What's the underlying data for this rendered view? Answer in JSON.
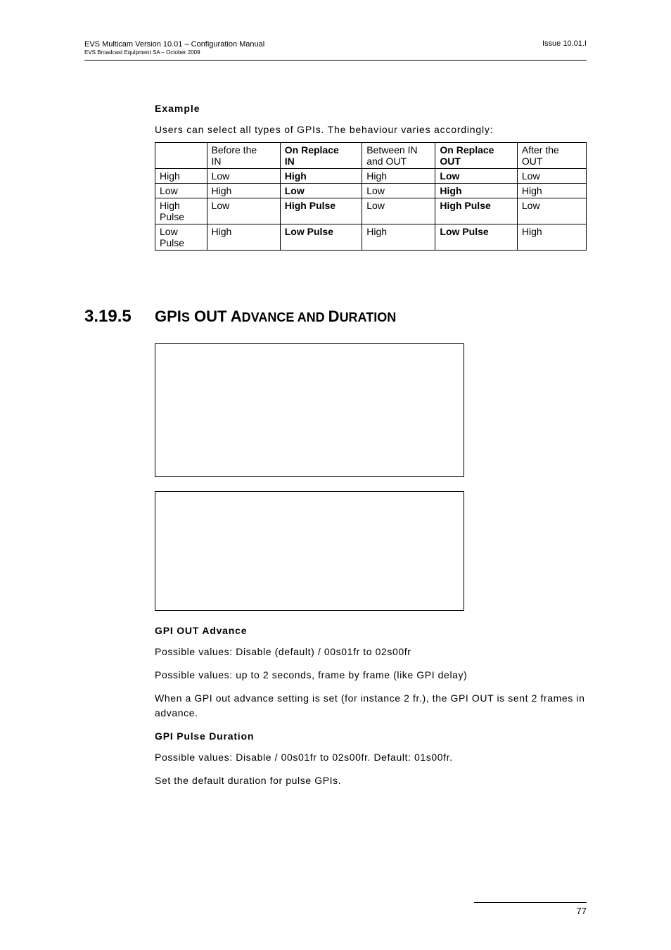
{
  "header": {
    "left_line1": "EVS Multicam Version 10.01 – Configuration Manual",
    "left_line2": "EVS Broadcast Equipment SA – October 2009",
    "right": "Issue 10.01.I"
  },
  "example": {
    "heading": "Example",
    "intro": "Users can select all types of GPIs. The behaviour varies accordingly:"
  },
  "table": {
    "columns": [
      {
        "line1": "",
        "line2": "",
        "bold": false
      },
      {
        "line1": "Before the",
        "line2": "IN",
        "bold": false
      },
      {
        "line1": "On Replace",
        "line2": "IN",
        "bold": true
      },
      {
        "line1": "Between IN",
        "line2": "and OUT",
        "bold": false
      },
      {
        "line1": "On Replace",
        "line2": "OUT",
        "bold": true
      },
      {
        "line1": "After the",
        "line2": "OUT",
        "bold": false
      }
    ],
    "rows": [
      [
        {
          "t": "High",
          "b": false
        },
        {
          "t": "Low",
          "b": false
        },
        {
          "t": "High",
          "b": true
        },
        {
          "t": "High",
          "b": false
        },
        {
          "t": "Low",
          "b": true
        },
        {
          "t": "Low",
          "b": false
        }
      ],
      [
        {
          "t": "Low",
          "b": false
        },
        {
          "t": "High",
          "b": false
        },
        {
          "t": "Low",
          "b": true
        },
        {
          "t": "Low",
          "b": false
        },
        {
          "t": "High",
          "b": true
        },
        {
          "t": "High",
          "b": false
        }
      ],
      [
        {
          "t": "High Pulse",
          "b": false
        },
        {
          "t": "Low",
          "b": false
        },
        {
          "t": "High Pulse",
          "b": true
        },
        {
          "t": "Low",
          "b": false
        },
        {
          "t": "High Pulse",
          "b": true
        },
        {
          "t": "Low",
          "b": false
        }
      ],
      [
        {
          "t": "Low Pulse",
          "b": false
        },
        {
          "t": "High",
          "b": false
        },
        {
          "t": "Low Pulse",
          "b": true
        },
        {
          "t": "High",
          "b": false
        },
        {
          "t": "Low Pulse",
          "b": true
        },
        {
          "t": "High",
          "b": false
        }
      ]
    ],
    "col_widths": [
      "12%",
      "17%",
      "19%",
      "17%",
      "19%",
      "16%"
    ]
  },
  "section": {
    "number": "3.19.5",
    "title_parts": [
      "GPI",
      "S",
      " OUT A",
      "DVANCE AND ",
      "D",
      "URATION"
    ]
  },
  "gpi_advance": {
    "heading": "GPI OUT Advance",
    "p1": "Possible values: Disable (default) / 00s01fr to 02s00fr",
    "p2": "Possible values: up to 2 seconds, frame by frame (like GPI delay)",
    "p3": "When a GPI out advance setting is set (for instance 2 fr.), the GPI OUT is sent 2 frames in advance."
  },
  "gpi_pulse": {
    "heading": "GPI Pulse Duration",
    "p1": "Possible values:  Disable / 00s01fr to 02s00fr. Default: 01s00fr.",
    "p2": "Set the default duration for pulse GPIs."
  },
  "footer": {
    "page": "77"
  },
  "style": {
    "page_bg": "#ffffff",
    "text_color": "#000000",
    "border_color": "#000000"
  }
}
